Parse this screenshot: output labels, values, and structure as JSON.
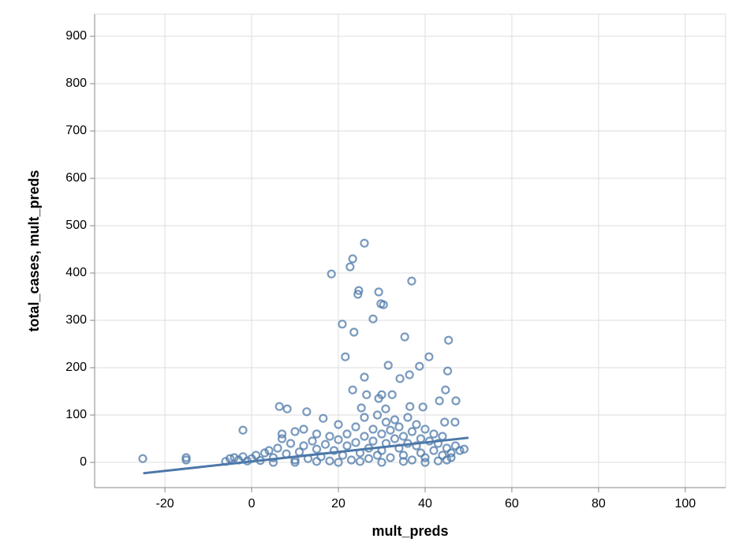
{
  "chart_data": {
    "type": "scatter",
    "x_label": "mult_preds",
    "y_label": "total_cases, mult_preds",
    "xlim": [
      -36.2,
      109.3
    ],
    "ylim": [
      -53.3,
      946.7
    ],
    "xticks": [
      -20,
      0,
      20,
      40,
      60,
      80,
      100
    ],
    "yticks": [
      0,
      100,
      200,
      300,
      400,
      500,
      600,
      700,
      800,
      900
    ],
    "grid": true,
    "series": [
      {
        "type": "scatter",
        "color": "#4c78a8",
        "x": [
          -25.1,
          -15.1,
          -15.1,
          -2,
          6.4,
          8.2,
          12.7,
          16.5,
          18.4,
          20.9,
          21.6,
          22.7,
          23.3,
          23.6,
          24.7,
          24.5,
          26,
          23.3,
          26,
          26.5,
          28,
          29.3,
          30.4,
          29.8,
          31.5,
          35.3,
          36.9,
          36.4,
          38.7,
          40.9,
          45.4,
          45.2,
          44.7,
          43.3,
          47.1,
          46.9,
          44.5,
          34.2,
          32.4,
          30,
          29.3,
          30.9,
          25.3,
          39.5,
          36.5,
          -6,
          -5,
          -4,
          -3,
          -2,
          -1,
          0,
          1,
          2,
          3,
          4,
          5,
          6,
          7,
          7,
          8,
          9,
          10,
          10,
          11,
          12,
          12,
          13,
          14,
          15,
          15,
          16,
          17,
          18,
          18,
          19,
          20,
          20,
          21,
          22,
          22,
          23,
          24,
          24,
          25,
          26,
          26,
          27,
          27,
          28,
          28,
          29,
          29,
          30,
          30,
          31,
          31,
          32,
          32,
          33,
          33,
          34,
          34,
          35,
          35,
          36,
          36,
          37,
          37,
          38,
          38,
          39,
          39,
          40,
          40,
          41,
          42,
          42,
          43,
          44,
          44,
          45,
          46,
          46,
          47,
          48,
          49,
          45,
          40,
          30,
          20,
          10,
          5,
          15,
          25,
          35,
          43
        ],
        "values": [
          8,
          5,
          10,
          68,
          118,
          113,
          107,
          93,
          398,
          292,
          223,
          413,
          430,
          275,
          363,
          355,
          463,
          153,
          180,
          143,
          303,
          360,
          333,
          335,
          205,
          265,
          383,
          185,
          203,
          223,
          258,
          193,
          153,
          130,
          130,
          85,
          85,
          177,
          143,
          143,
          135,
          113,
          115,
          117,
          118,
          2,
          8,
          10,
          5,
          12,
          3,
          8,
          15,
          4,
          20,
          25,
          10,
          30,
          50,
          60,
          18,
          40,
          5,
          65,
          22,
          35,
          70,
          8,
          45,
          28,
          60,
          12,
          38,
          55,
          3,
          25,
          48,
          80,
          15,
          60,
          35,
          5,
          75,
          42,
          20,
          95,
          55,
          30,
          8,
          70,
          45,
          100,
          15,
          60,
          25,
          85,
          40,
          10,
          68,
          50,
          90,
          30,
          75,
          15,
          55,
          95,
          40,
          65,
          5,
          80,
          35,
          50,
          20,
          70,
          10,
          45,
          60,
          25,
          40,
          15,
          55,
          30,
          20,
          10,
          35,
          25,
          28,
          5,
          0,
          0,
          0,
          0,
          0,
          2,
          2,
          2,
          3
        ]
      },
      {
        "type": "line",
        "color": "#4c78a8",
        "x": [
          -25,
          50
        ],
        "values": [
          -23,
          52
        ]
      }
    ]
  }
}
